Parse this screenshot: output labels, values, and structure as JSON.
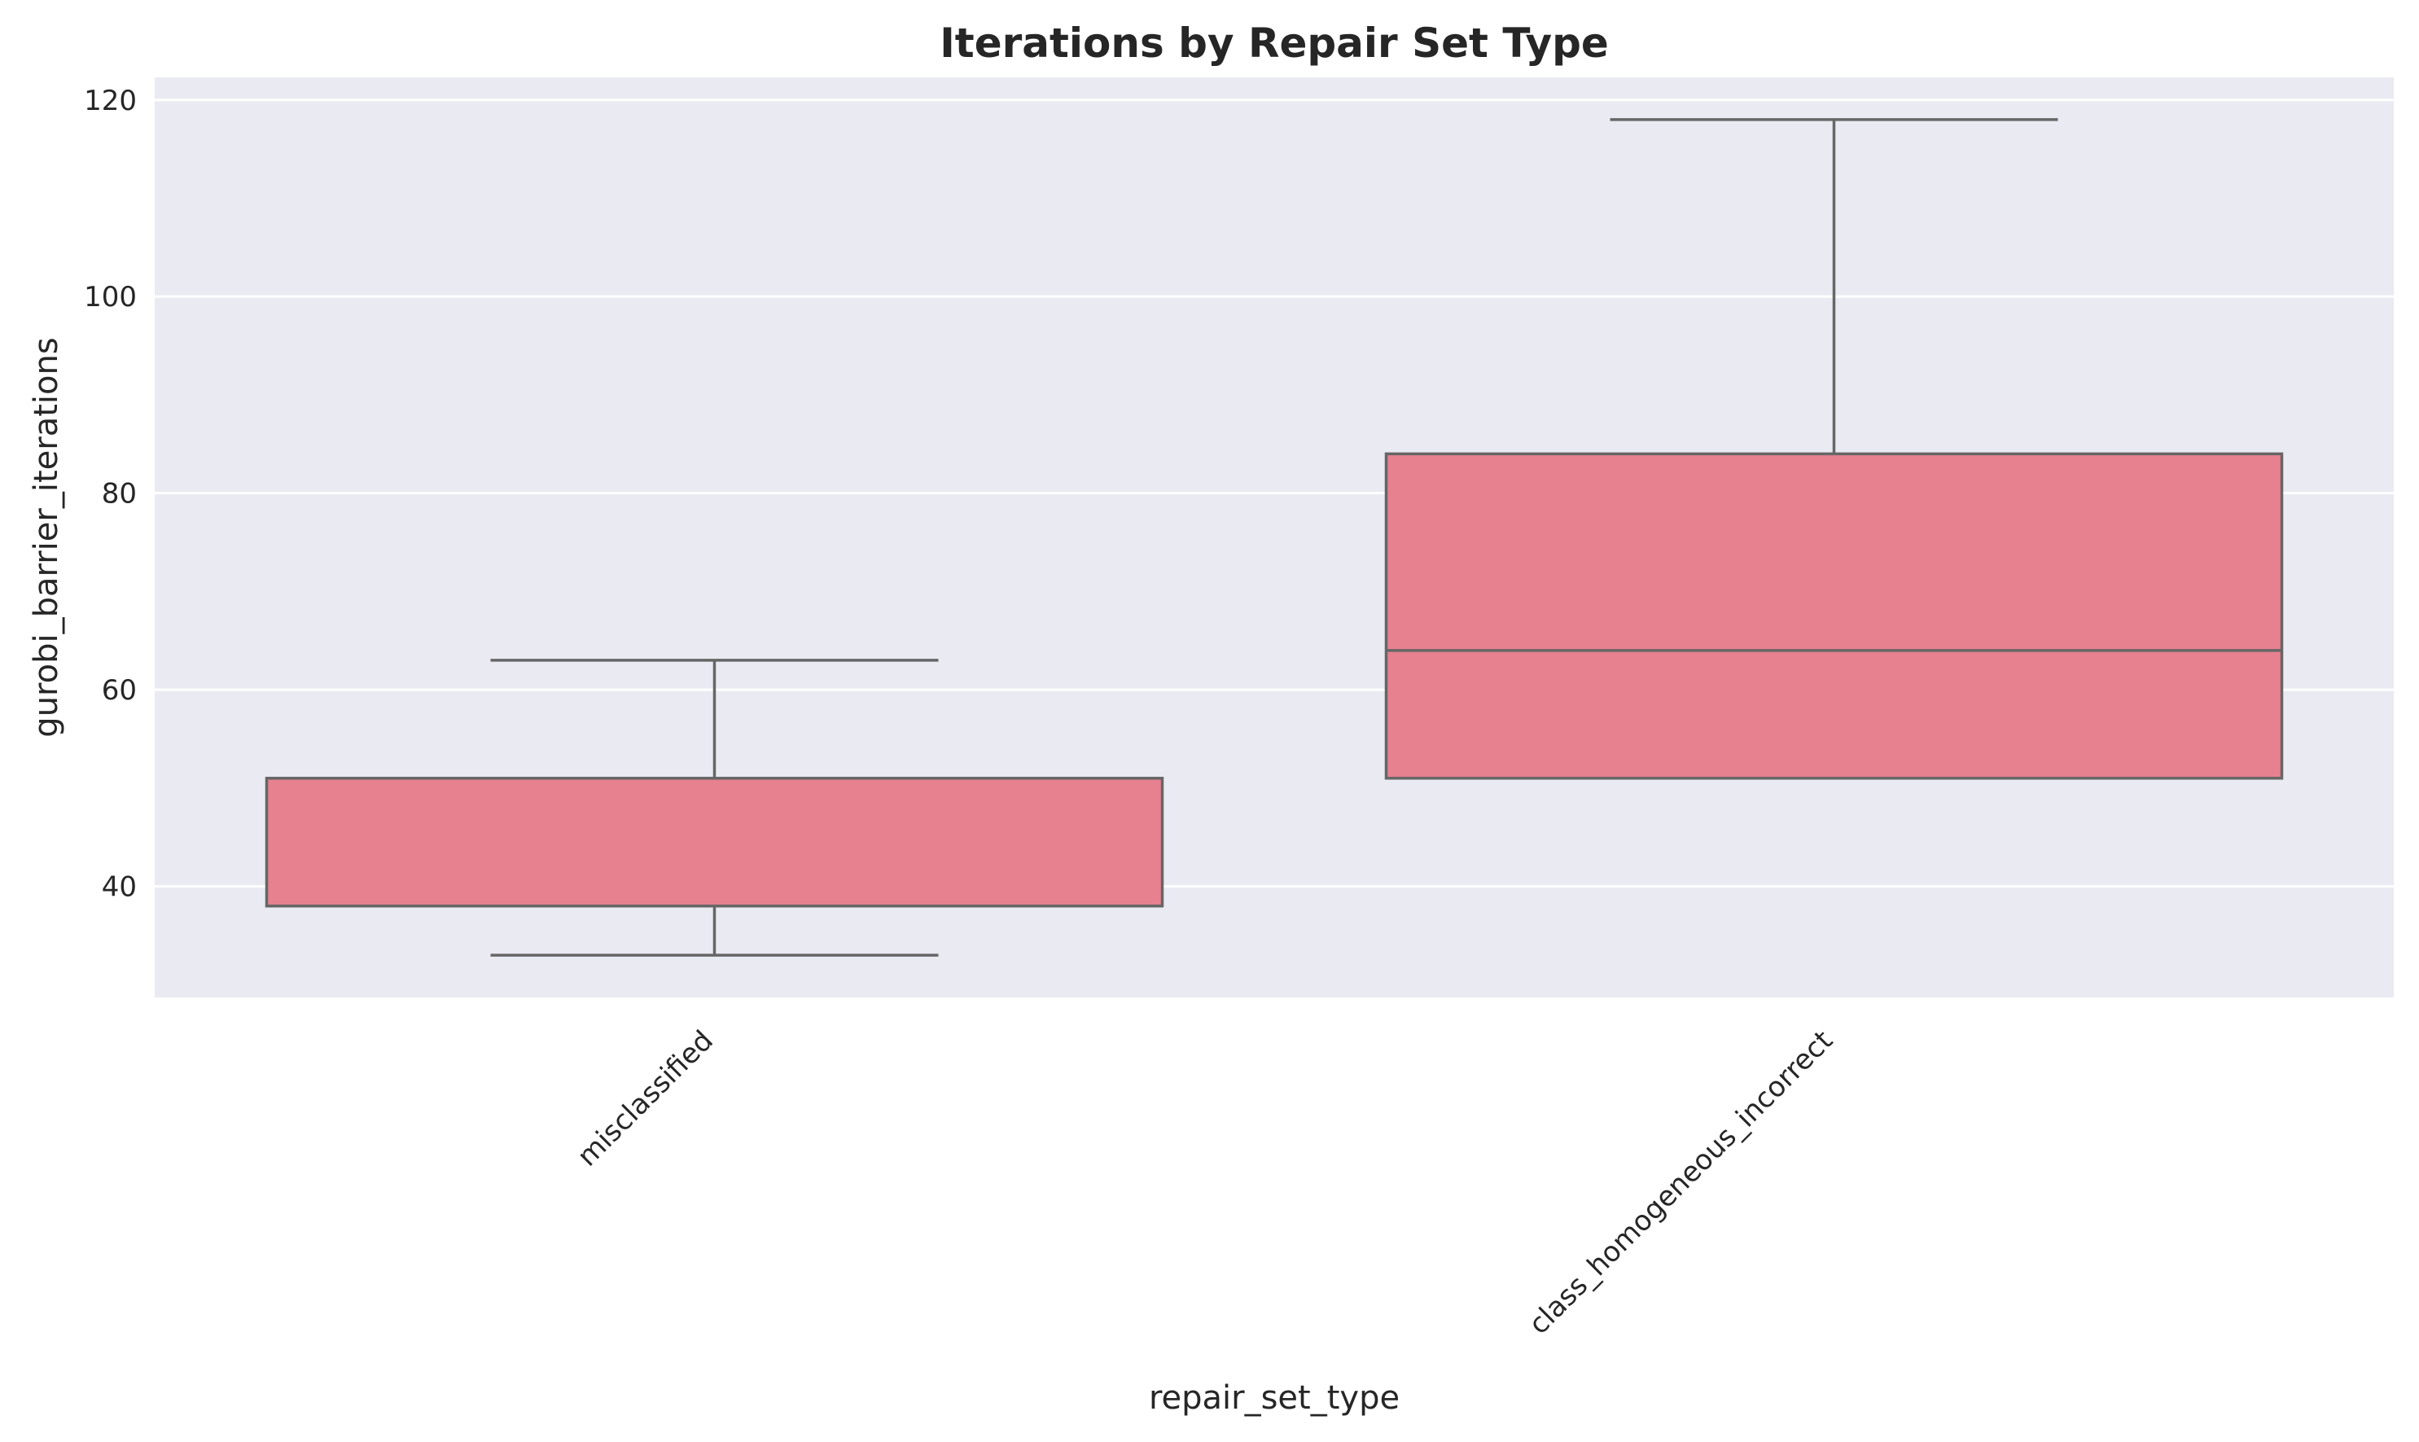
{
  "chart_data": {
    "type": "box",
    "title": "Iterations by Repair Set Type",
    "xlabel": "repair_set_type",
    "ylabel": "gurobi_barrier_iterations",
    "ylim": [
      28.7,
      122.3
    ],
    "yticks": [
      40,
      60,
      80,
      100,
      120
    ],
    "grid": true,
    "categories": [
      "misclassified",
      "class_homogeneous_incorrect"
    ],
    "boxes": [
      {
        "category": "misclassified",
        "whisker_low": 33,
        "q1": 38,
        "median": 38,
        "q3": 51,
        "whisker_high": 63
      },
      {
        "category": "class_homogeneous_incorrect",
        "whisker_low": 51,
        "q1": 51,
        "median": 64,
        "q3": 84,
        "whisker_high": 118
      }
    ],
    "colors": {
      "box_fill": "#e7808f",
      "line": "#666666",
      "plot_background": "#eaeaf2",
      "grid": "#ffffff"
    }
  }
}
